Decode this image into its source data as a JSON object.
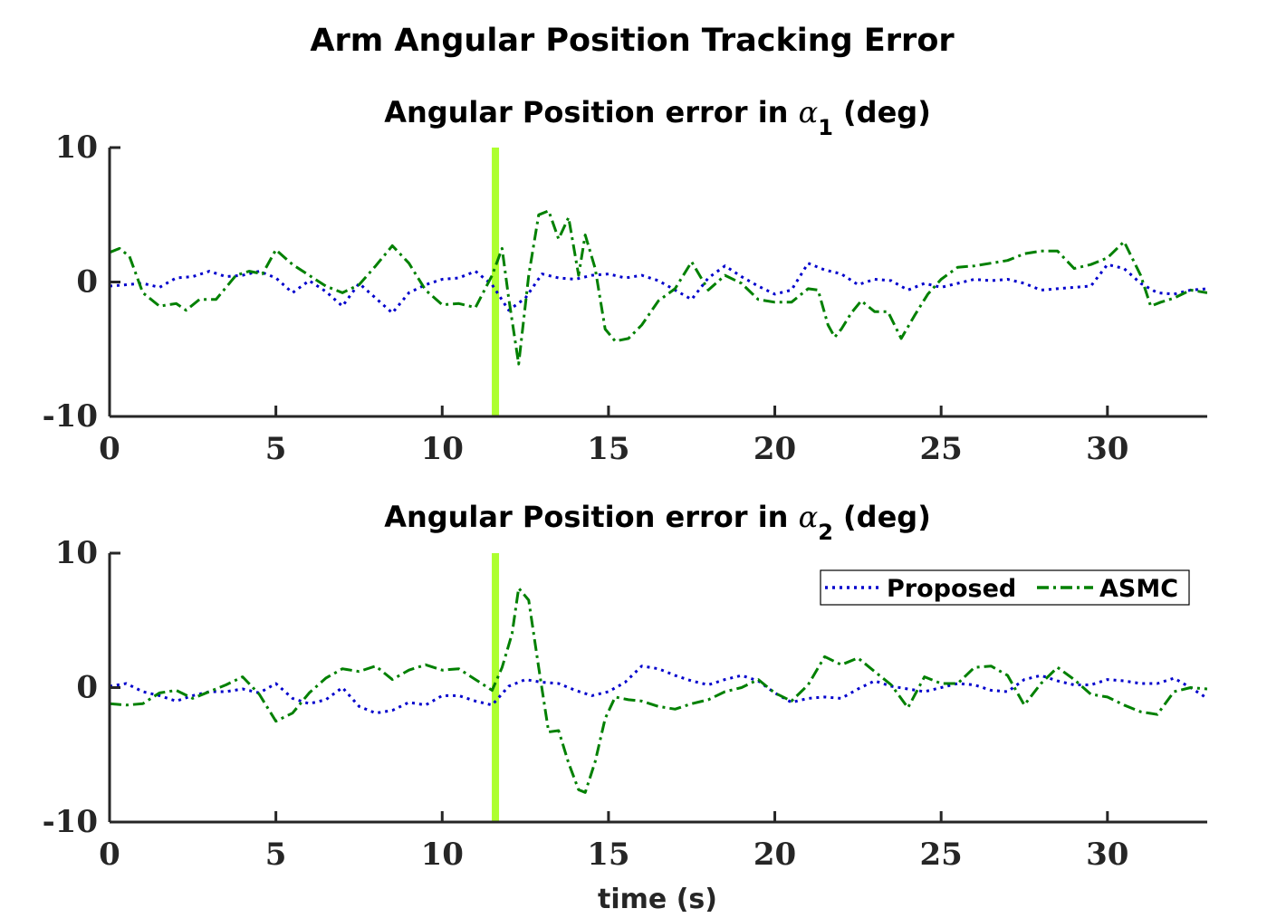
{
  "title": "Arm Angular Position Tracking Error",
  "colors": {
    "proposed": "#0000cc",
    "asmc": "#008000",
    "marker": "#adff2f",
    "axis": "#262626"
  },
  "chart_data": [
    {
      "type": "line",
      "title_main": "Angular Position error in ",
      "title_symbol": "α",
      "title_sub": "1",
      "title_end": " (deg)",
      "xlabel": "",
      "ylabel": "",
      "xlim": [
        0,
        33
      ],
      "ylim": [
        -10,
        10
      ],
      "xticks": [
        0,
        5,
        10,
        15,
        20,
        25,
        30
      ],
      "yticks": [
        -10,
        0,
        10
      ],
      "ytick_labels": [
        "-10",
        "0",
        "10"
      ],
      "marker_x": 11.6,
      "series": [
        {
          "name": "Proposed",
          "style": "dotted",
          "x": [
            0,
            0.5,
            1,
            1.5,
            2,
            2.5,
            3,
            3.5,
            4,
            4.5,
            5,
            5.5,
            6,
            6.5,
            7,
            7.5,
            8,
            8.5,
            9,
            9.5,
            10,
            10.5,
            11,
            11.5,
            12,
            12.5,
            13,
            13.5,
            14,
            14.5,
            15,
            15.5,
            16,
            16.5,
            17,
            17.5,
            18,
            18.5,
            19,
            19.5,
            20,
            20.5,
            21,
            21.5,
            22,
            22.5,
            23,
            23.5,
            24,
            24.5,
            25,
            25.5,
            26,
            26.5,
            27,
            27.5,
            28,
            28.5,
            29,
            29.5,
            30,
            30.5,
            31,
            31.5,
            32,
            32.5,
            33
          ],
          "y": [
            -0.3,
            -0.2,
            -0.1,
            -0.4,
            0.3,
            0.4,
            0.8,
            0.4,
            0.5,
            0.8,
            0.3,
            -0.8,
            0.1,
            -0.7,
            -1.8,
            -0.1,
            -1.2,
            -2.3,
            -0.8,
            -0.2,
            0.2,
            0.3,
            0.8,
            -0.2,
            -2.1,
            -1.2,
            0.6,
            0.3,
            0.2,
            0.5,
            0.6,
            0.3,
            0.5,
            0.1,
            -0.6,
            -1.3,
            0.3,
            1.2,
            0.4,
            -0.3,
            -0.9,
            -0.6,
            1.4,
            0.9,
            0.6,
            -0.2,
            0.2,
            0.1,
            -0.6,
            -0.1,
            -0.4,
            -0.1,
            0.2,
            0.1,
            0.2,
            -0.1,
            -0.6,
            -0.5,
            -0.4,
            -0.3,
            1.3,
            1.0,
            -0.1,
            -0.8,
            -0.9,
            -0.6,
            -0.5
          ]
        },
        {
          "name": "ASMC",
          "style": "dashed",
          "x": [
            0,
            0.3,
            0.6,
            1,
            1.5,
            2,
            2.3,
            2.7,
            3.2,
            3.8,
            4.2,
            4.6,
            5,
            5.5,
            6,
            6.5,
            7,
            7.5,
            8,
            8.5,
            9,
            9.5,
            10,
            10.5,
            11,
            11.5,
            11.8,
            12,
            12.3,
            12.6,
            12.9,
            13.2,
            13.5,
            13.8,
            14.1,
            14.3,
            14.6,
            14.9,
            15.2,
            15.6,
            16,
            16.5,
            17,
            17.5,
            18,
            18.5,
            19,
            19.5,
            20,
            20.5,
            21,
            21.3,
            21.6,
            21.8,
            22,
            22.3,
            22.6,
            23,
            23.4,
            23.8,
            24.2,
            24.6,
            25,
            25.5,
            26,
            26.5,
            27,
            27.5,
            28,
            28.5,
            29,
            29.5,
            30,
            30.5,
            31,
            31.3,
            31.6,
            32,
            32.5,
            33
          ],
          "y": [
            2.2,
            2.5,
            1.9,
            -0.8,
            -1.8,
            -1.6,
            -2.1,
            -1.3,
            -1.3,
            0.5,
            0.8,
            0.6,
            2.4,
            1.3,
            0.5,
            -0.3,
            -0.8,
            -0.2,
            1.2,
            2.7,
            1.4,
            -0.6,
            -1.7,
            -1.6,
            -1.9,
            0.5,
            2.5,
            -1.2,
            -6.1,
            0.5,
            5.0,
            5.3,
            3.2,
            4.8,
            0.5,
            3.5,
            1.0,
            -3.5,
            -4.4,
            -4.2,
            -3.2,
            -1.4,
            -0.5,
            1.5,
            -0.6,
            0.5,
            -0.1,
            -1.3,
            -1.5,
            -1.5,
            -0.5,
            -0.6,
            -3.2,
            -4.1,
            -3.5,
            -2.3,
            -1.4,
            -2.2,
            -2.2,
            -4.2,
            -2.5,
            -0.9,
            0.2,
            1.1,
            1.2,
            1.4,
            1.6,
            2.1,
            2.3,
            2.3,
            1.0,
            1.3,
            1.8,
            3.0,
            0.5,
            -1.8,
            -1.5,
            -1.2,
            -0.6,
            -0.8
          ]
        }
      ]
    },
    {
      "type": "line",
      "title_main": "Angular Position error in ",
      "title_symbol": "α",
      "title_sub": "2",
      "title_end": " (deg)",
      "xlabel": "time (s)",
      "ylabel": "",
      "xlim": [
        0,
        33
      ],
      "ylim": [
        -10,
        10
      ],
      "xticks": [
        0,
        5,
        10,
        15,
        20,
        25,
        30
      ],
      "yticks": [
        -10,
        0,
        10
      ],
      "ytick_labels": [
        "-10",
        "0",
        "10"
      ],
      "marker_x": 11.6,
      "legend_position": "top-right",
      "series": [
        {
          "name": "Proposed",
          "style": "dotted",
          "x": [
            0,
            0.5,
            1,
            1.5,
            2,
            2.5,
            3,
            3.5,
            4,
            4.5,
            5,
            5.5,
            6,
            6.5,
            7,
            7.5,
            8,
            8.5,
            9,
            9.5,
            10,
            10.5,
            11,
            11.5,
            12,
            12.5,
            13,
            13.5,
            14,
            14.5,
            15,
            15.5,
            16,
            16.5,
            17,
            17.5,
            18,
            18.5,
            19,
            19.5,
            20,
            20.5,
            21,
            21.5,
            22,
            22.5,
            23,
            23.5,
            24,
            24.5,
            25,
            25.5,
            26,
            26.5,
            27,
            27.5,
            28,
            28.5,
            29,
            29.5,
            30,
            30.5,
            31,
            31.5,
            32,
            32.5,
            33
          ],
          "y": [
            0.1,
            0.3,
            -0.3,
            -0.6,
            -1.0,
            -0.6,
            -0.3,
            -0.3,
            -0.1,
            -0.4,
            0.3,
            -0.8,
            -1.2,
            -0.9,
            0.0,
            -1.4,
            -1.9,
            -1.7,
            -1.1,
            -1.3,
            -0.6,
            -0.6,
            -1.0,
            -1.3,
            0.1,
            0.6,
            0.4,
            0.3,
            -0.2,
            -0.6,
            -0.3,
            0.4,
            1.6,
            1.4,
            0.9,
            0.5,
            0.2,
            0.6,
            0.9,
            0.5,
            -0.4,
            -1.1,
            -0.8,
            -0.7,
            -0.8,
            -0.1,
            0.5,
            0.1,
            -0.1,
            -0.3,
            0.0,
            0.3,
            0.2,
            -0.2,
            -0.3,
            0.6,
            0.9,
            0.5,
            0.2,
            0.2,
            0.6,
            0.5,
            0.3,
            0.3,
            0.7,
            0.0,
            -0.8
          ]
        },
        {
          "name": "ASMC",
          "style": "dashed",
          "x": [
            0,
            0.5,
            1,
            1.5,
            2,
            2.5,
            3,
            3.5,
            4,
            4.5,
            5,
            5.5,
            6,
            6.5,
            7,
            7.5,
            8,
            8.5,
            9,
            9.5,
            10,
            10.5,
            11,
            11.5,
            11.8,
            12.1,
            12.3,
            12.6,
            12.9,
            13.2,
            13.5,
            13.8,
            14.1,
            14.3,
            14.6,
            14.9,
            15.2,
            15.6,
            16,
            16.5,
            17,
            17.5,
            18,
            18.5,
            19,
            19.5,
            20,
            20.5,
            21,
            21.5,
            22,
            22.5,
            23,
            23.5,
            24,
            24.5,
            25,
            25.5,
            26,
            26.5,
            27,
            27.5,
            28,
            28.5,
            29,
            29.5,
            30,
            30.5,
            31,
            31.5,
            32,
            32.5,
            33
          ],
          "y": [
            -1.2,
            -1.3,
            -1.2,
            -0.4,
            -0.2,
            -0.8,
            -0.3,
            0.2,
            0.8,
            -0.5,
            -2.5,
            -1.9,
            -0.4,
            0.7,
            1.4,
            1.2,
            1.6,
            0.6,
            1.3,
            1.7,
            1.3,
            1.4,
            0.6,
            -0.2,
            1.5,
            4.0,
            7.4,
            6.5,
            1.5,
            -3.3,
            -3.2,
            -5.6,
            -7.6,
            -7.8,
            -5.5,
            -2.3,
            -0.7,
            -0.9,
            -1.0,
            -1.4,
            -1.6,
            -1.2,
            -0.9,
            -0.3,
            0.0,
            0.6,
            -0.4,
            -1.0,
            0.2,
            2.3,
            1.7,
            2.2,
            1.2,
            0.2,
            -1.5,
            0.8,
            0.3,
            0.3,
            1.5,
            1.6,
            0.9,
            -1.3,
            0.3,
            1.5,
            0.6,
            -0.5,
            -0.7,
            -1.3,
            -1.8,
            -2.0,
            -0.3,
            0.0,
            -0.1
          ]
        }
      ]
    }
  ]
}
